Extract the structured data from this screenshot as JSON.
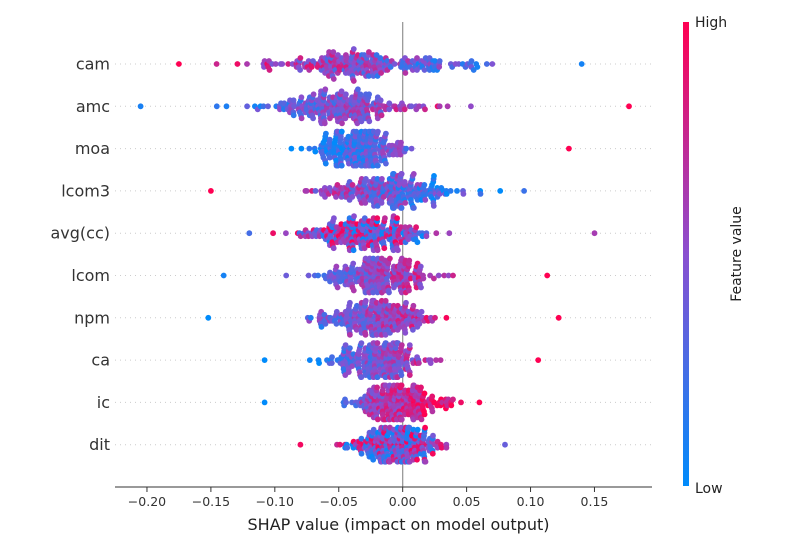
{
  "chart_data": {
    "type": "scatter",
    "subtype": "shap-beeswarm",
    "xlabel": "SHAP value (impact on model output)",
    "xticks": [
      -0.2,
      -0.15,
      -0.1,
      -0.05,
      0.0,
      0.05,
      0.1,
      0.15
    ],
    "xtick_labels": [
      "−0.20",
      "−0.15",
      "−0.10",
      "−0.05",
      "0.00",
      "0.05",
      "0.10",
      "0.15"
    ],
    "xlim": [
      -0.225,
      0.195
    ],
    "zero_line": 0,
    "features": [
      {
        "name": "cam",
        "min": -0.175,
        "max": 0.14,
        "center": -0.03,
        "spread": 0.07,
        "high_side": "negative"
      },
      {
        "name": "amc",
        "min": -0.205,
        "max": 0.177,
        "center": -0.05,
        "spread": 0.055,
        "high_side": "positive"
      },
      {
        "name": "moa",
        "min": -0.087,
        "max": 0.13,
        "center": -0.035,
        "spread": 0.03,
        "high_side": "positive"
      },
      {
        "name": "lcom3",
        "min": -0.15,
        "max": 0.095,
        "center": -0.01,
        "spread": 0.045,
        "high_side": "negative"
      },
      {
        "name": "avg(cc)",
        "min": -0.12,
        "max": 0.15,
        "center": -0.03,
        "spread": 0.04,
        "high_side": "mixed"
      },
      {
        "name": "lcom",
        "min": -0.14,
        "max": 0.113,
        "center": -0.02,
        "spread": 0.035,
        "high_side": "positive"
      },
      {
        "name": "npm",
        "min": -0.152,
        "max": 0.122,
        "center": -0.02,
        "spread": 0.035,
        "high_side": "positive"
      },
      {
        "name": "ca",
        "min": -0.108,
        "max": 0.106,
        "center": -0.02,
        "spread": 0.03,
        "high_side": "positive"
      },
      {
        "name": "ic",
        "min": -0.108,
        "max": 0.06,
        "center": -0.005,
        "spread": 0.03,
        "high_side": "positive"
      },
      {
        "name": "dit",
        "min": -0.08,
        "max": 0.08,
        "center": -0.005,
        "spread": 0.03,
        "high_side": "mixed"
      }
    ],
    "colorbar": {
      "title": "Feature value",
      "high_label": "High",
      "low_label": "Low",
      "high_color": "#ff0052",
      "low_color": "#008bfb"
    },
    "grid": false,
    "legend": "colorbar-right"
  }
}
